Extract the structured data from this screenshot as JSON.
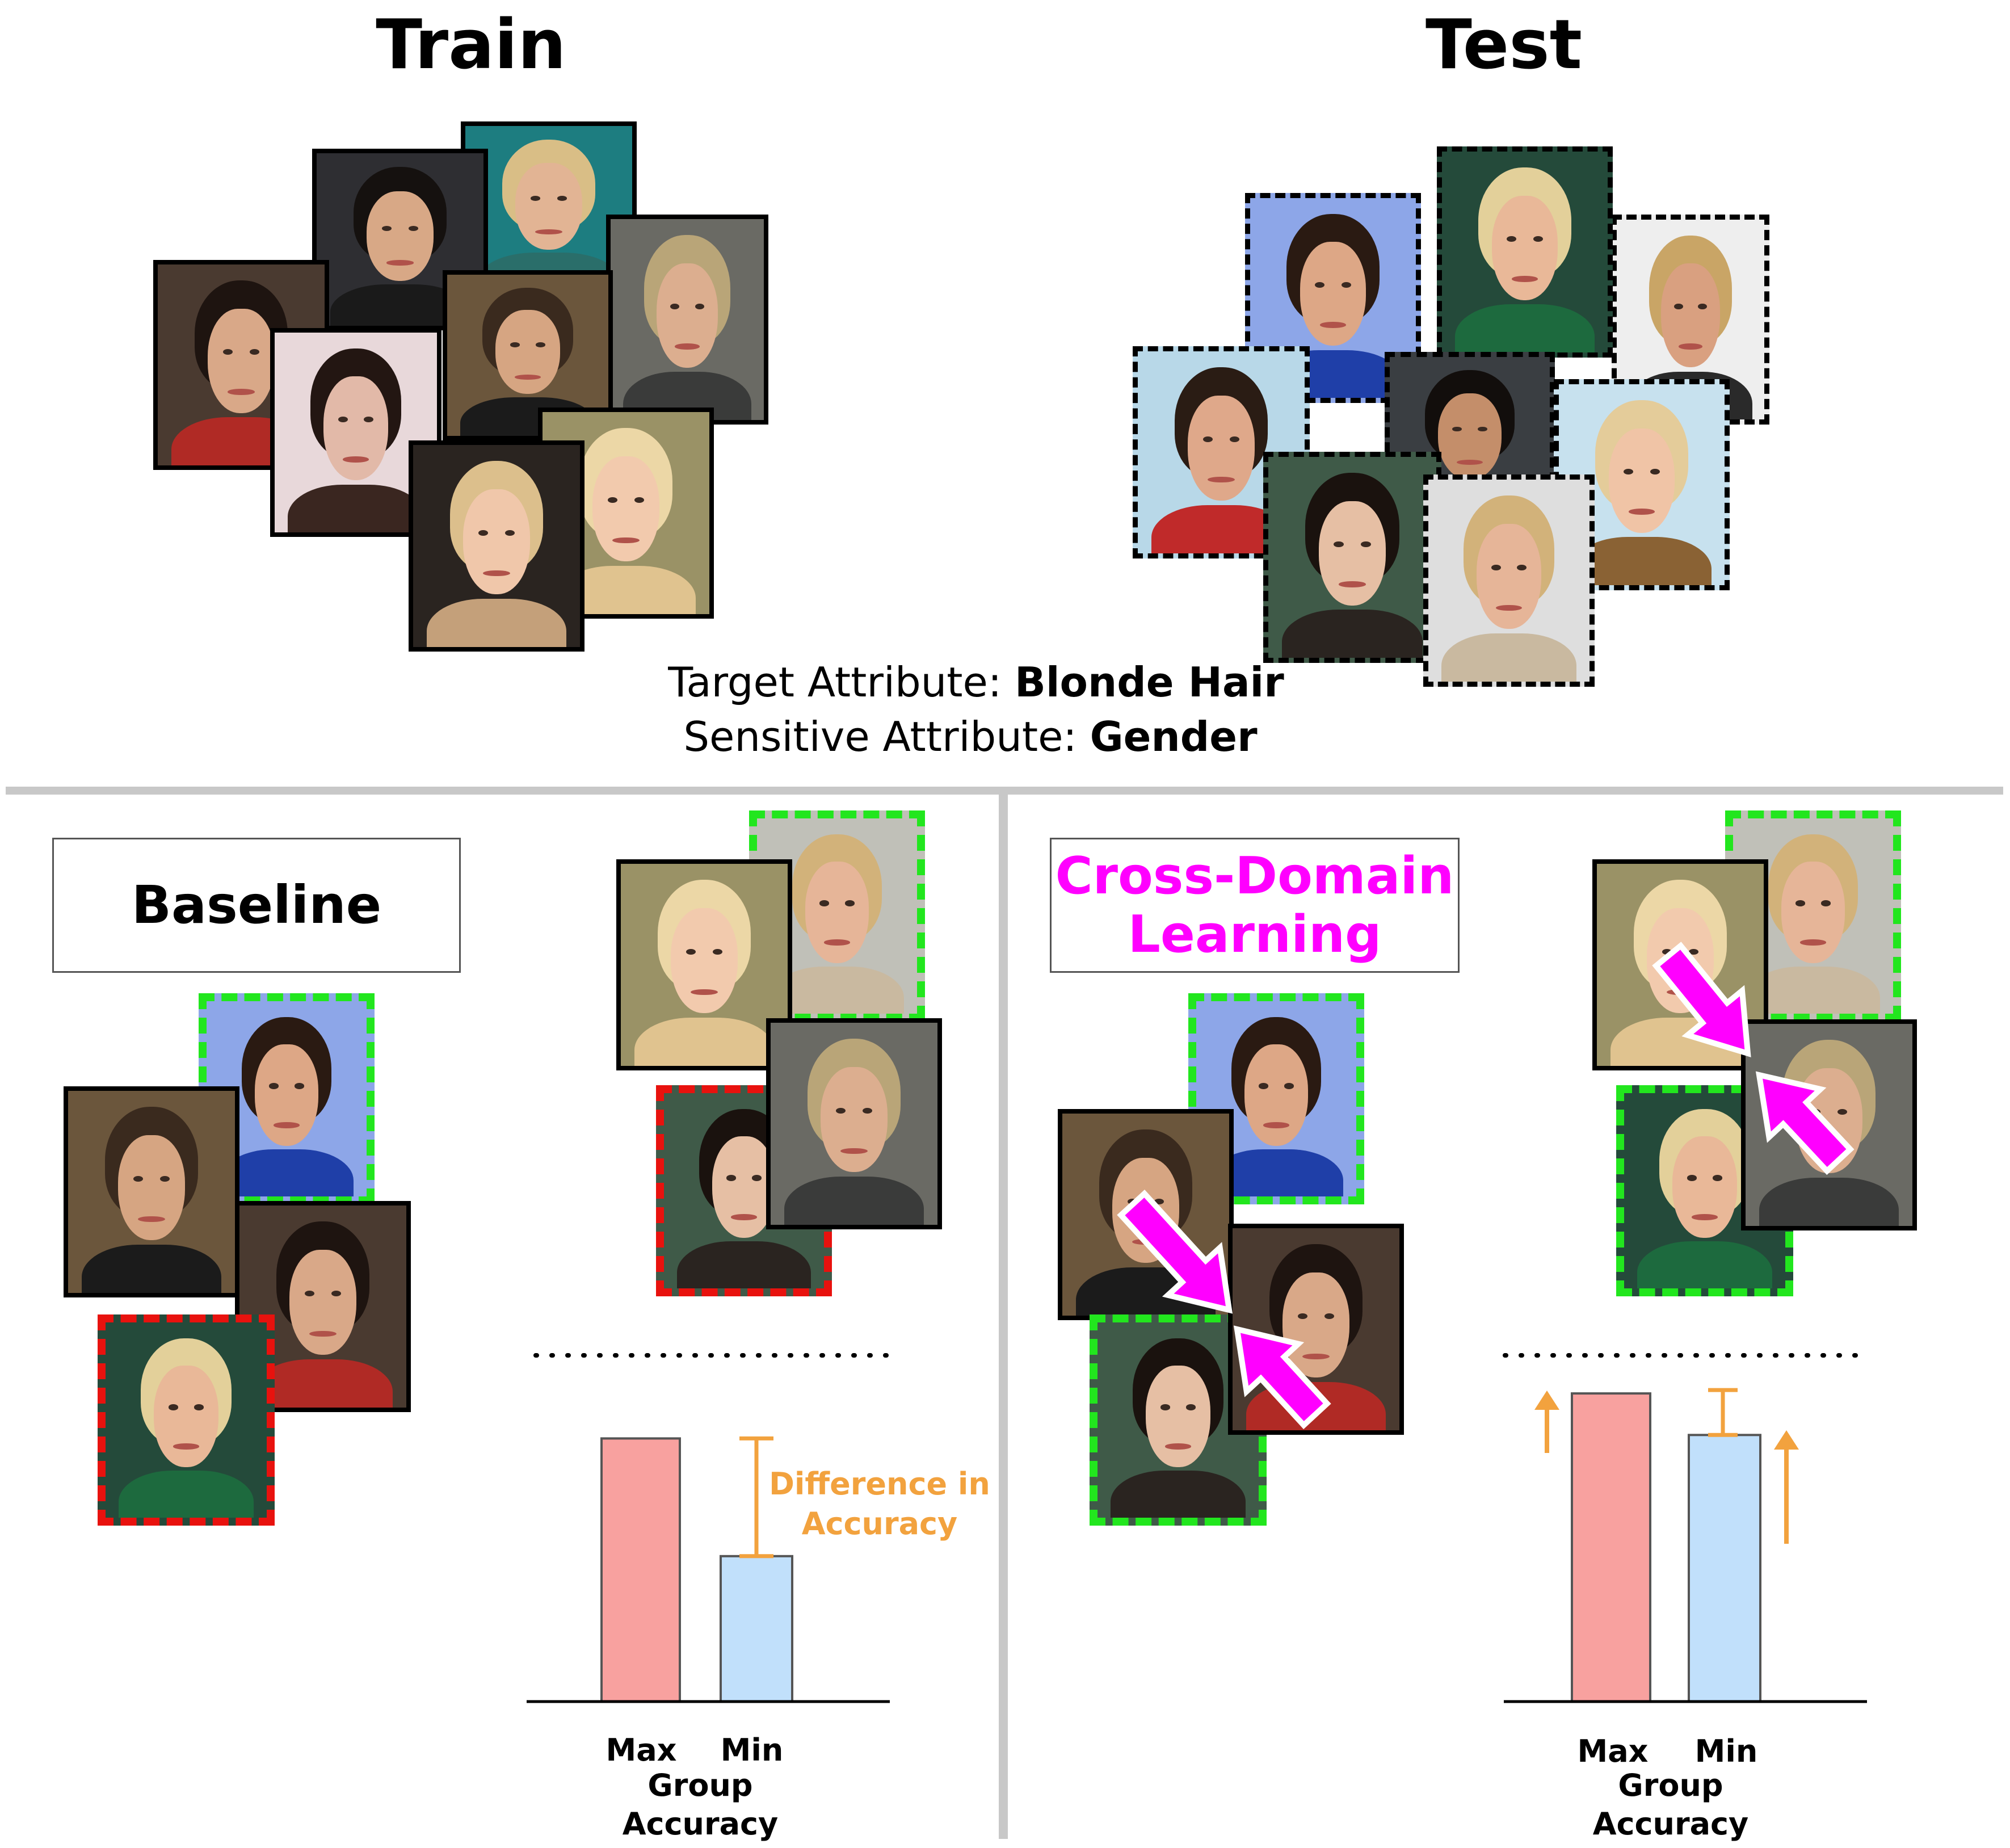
{
  "top": {
    "train_title": "Train",
    "test_title": "Test",
    "target_label": "Target Attribute: ",
    "target_value": "Blonde Hair",
    "sensitive_label": "Sensitive Attribute: ",
    "sensitive_value": "Gender"
  },
  "panels": {
    "baseline": {
      "title": "Baseline",
      "chart_labels": {
        "max": "Max",
        "min": "Min",
        "group": "Group",
        "accuracy": "Accuracy"
      },
      "annotation_line1": "Difference in",
      "annotation_line2": "Accuracy"
    },
    "cross_domain": {
      "title_line1": "Cross-Domain",
      "title_line2": "Learning",
      "chart_labels": {
        "max": "Max",
        "min": "Min",
        "group": "Group",
        "accuracy": "Accuracy"
      }
    }
  },
  "chart_data": [
    {
      "type": "bar",
      "panel": "Baseline",
      "categories": [
        "Max",
        "Min"
      ],
      "values": [
        0.76,
        0.42
      ],
      "xlabel": "Group Accuracy",
      "annotations": [
        "Difference in Accuracy"
      ],
      "colors": [
        "#f8a19f",
        "#c1e0fb"
      ]
    },
    {
      "type": "bar",
      "panel": "Cross-Domain Learning",
      "categories": [
        "Max",
        "Min"
      ],
      "values": [
        0.89,
        0.77
      ],
      "xlabel": "Group Accuracy",
      "colors": [
        "#f8a19f",
        "#c1e0fb"
      ]
    }
  ],
  "colors": {
    "accent_magenta": "#ff00ff",
    "annotation_orange": "#f2a23e",
    "max_bar": "#f8a19f",
    "min_bar": "#c1e0fb",
    "green_dash": "#22e61e",
    "red_dash": "#e8120e",
    "divider": "#c8c8c8"
  }
}
